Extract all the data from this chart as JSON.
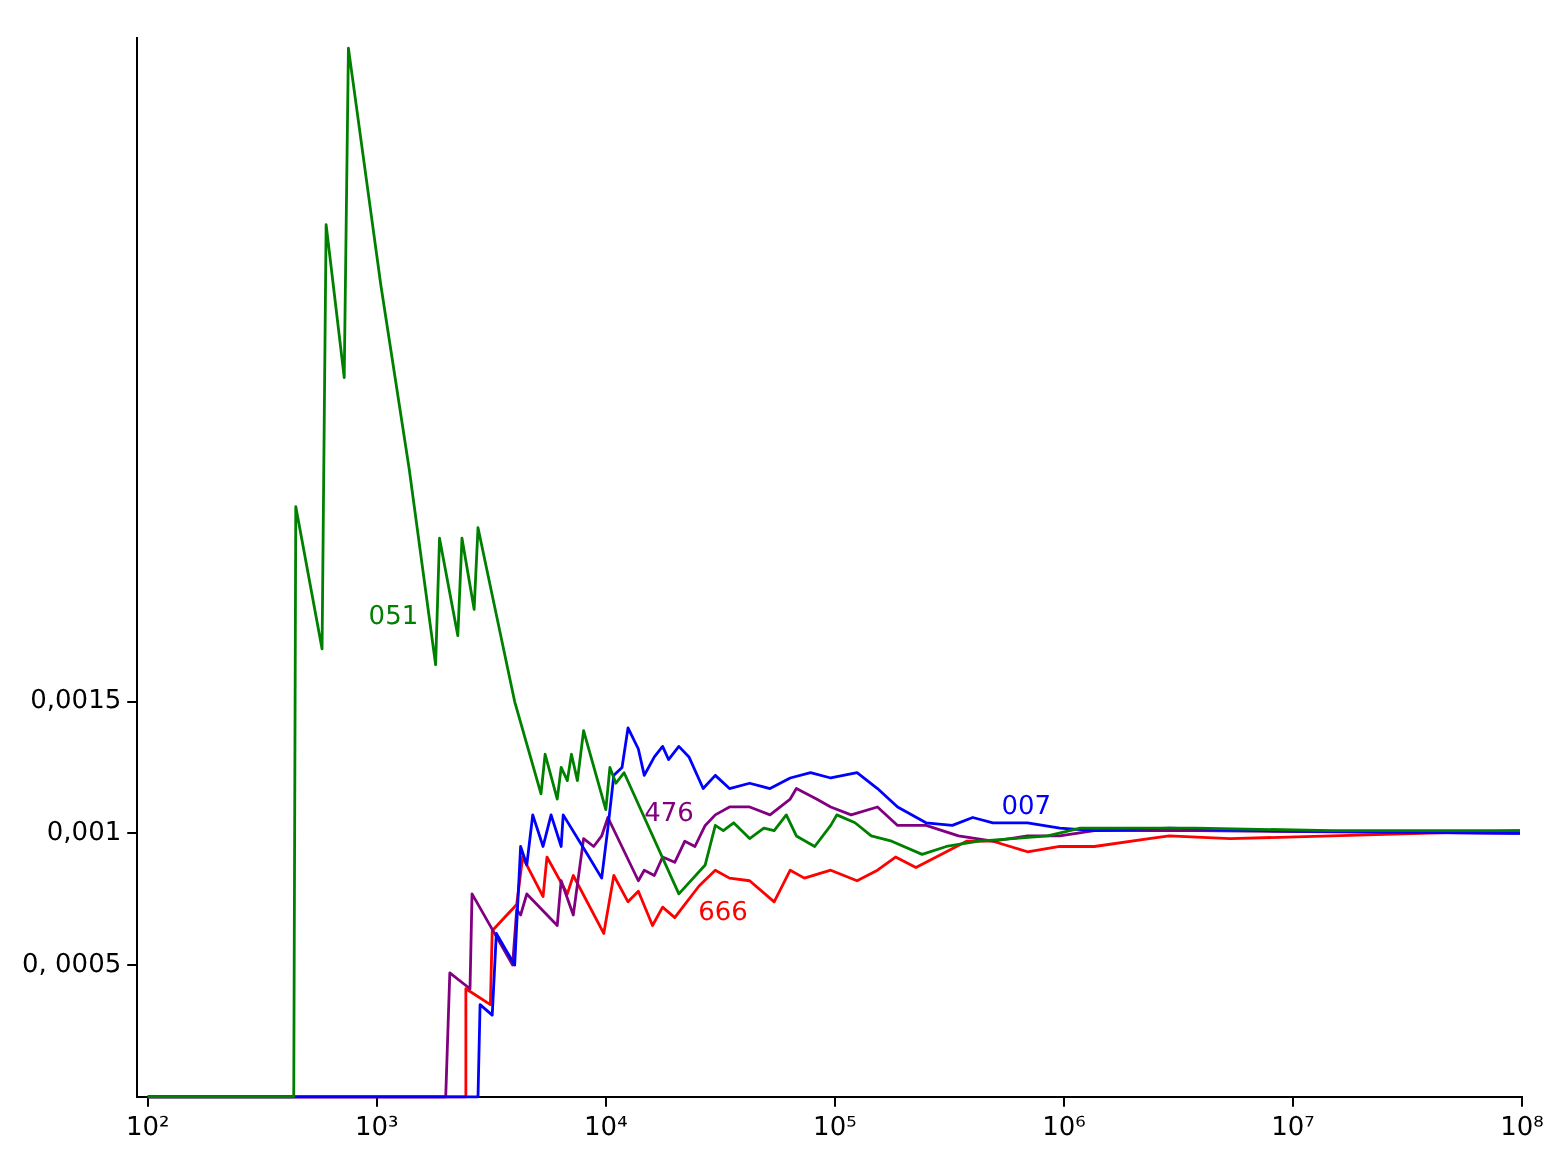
{
  "chart_data": {
    "type": "line",
    "log": "x",
    "grid": false,
    "legend": false,
    "marker": "none",
    "line_style": "solid",
    "xlim": [
      90,
      100000000
    ],
    "ylim": [
      0,
      0.00402
    ],
    "xticks": [
      {
        "value": 100,
        "label": "10²"
      },
      {
        "value": 1000,
        "label": "10³"
      },
      {
        "value": 10000,
        "label": "10⁴"
      },
      {
        "value": 100000,
        "label": "10⁵"
      },
      {
        "value": 1000000,
        "label": "10⁶"
      },
      {
        "value": 10000000,
        "label": "10⁷"
      },
      {
        "value": 100000000,
        "label": "10⁸"
      }
    ],
    "yticks": [
      {
        "value": 0.0005,
        "label": "0, 0005"
      },
      {
        "value": 0.001,
        "label": "0,001"
      },
      {
        "value": 0.0015,
        "label": "0,0015"
      }
    ],
    "series": [
      {
        "name": "051",
        "color": "#008000",
        "x": [
          100,
          434,
          443,
          577,
          601,
          721,
          752,
          1042,
          1387,
          1807,
          1879,
          2259,
          2355,
          2661,
          2767,
          4000,
          5212,
          5433,
          6137,
          6383,
          6792,
          7079,
          7516,
          7998,
          10000,
          10420,
          11070,
          12020,
          20840,
          27160,
          30060,
          32580,
          36140,
          42460,
          48980,
          54330,
          61380,
          67920,
          81660,
          95940,
          102000,
          122500,
          144200,
          177000,
          240400,
          306900,
          424800,
          601000,
          849300,
          1178000,
          1919000,
          3758000,
          14720000,
          97960000
        ],
        "values": [
          0,
          0,
          0.00224,
          0.0017,
          0.00331,
          0.00273,
          0.00398,
          0.00308,
          0.00238,
          0.00164,
          0.00212,
          0.00175,
          0.00212,
          0.00185,
          0.00216,
          0.0015,
          0.00115,
          0.0013,
          0.00113,
          0.00125,
          0.0012,
          0.0013,
          0.0012,
          0.00139,
          0.00109,
          0.00125,
          0.00119,
          0.00123,
          0.00077,
          0.00088,
          0.00103,
          0.00101,
          0.00104,
          0.00098,
          0.00102,
          0.00101,
          0.00107,
          0.00099,
          0.00095,
          0.00103,
          0.00107,
          0.00104,
          0.00099,
          0.00097,
          0.00092,
          0.00095,
          0.00097,
          0.00098,
          0.00099,
          0.00102,
          0.00102,
          0.00102,
          0.00101,
          0.00101
        ]
      },
      {
        "name": "007",
        "color": "#0000ff",
        "x": [
          100,
          2767,
          2825,
          3192,
          3327,
          4000,
          4246,
          4519,
          4797,
          5321,
          5768,
          6383,
          6516,
          8318,
          9594,
          10210,
          10840,
          11770,
          12500,
          13870,
          14720,
          16290,
          17700,
          18790,
          20840,
          23070,
          26610,
          30060,
          34670,
          42460,
          52120,
          63830,
          78340,
          95940,
          125000,
          153500,
          187900,
          250000,
          325800,
          399900,
          489800,
          693400,
          959400,
          1358000,
          2884000,
          7362000,
          97960000
        ],
        "values": [
          0,
          0,
          0.00035,
          0.00031,
          0.00062,
          0.0005,
          0.00095,
          0.00088,
          0.00107,
          0.00095,
          0.00107,
          0.00095,
          0.00107,
          0.00092,
          0.00083,
          0.00102,
          0.00122,
          0.00125,
          0.0014,
          0.00132,
          0.00122,
          0.00129,
          0.00133,
          0.00128,
          0.00133,
          0.00129,
          0.00117,
          0.00122,
          0.00117,
          0.00119,
          0.00117,
          0.00121,
          0.00123,
          0.00121,
          0.00123,
          0.00117,
          0.0011,
          0.00104,
          0.00103,
          0.00106,
          0.00104,
          0.00104,
          0.00102,
          0.00101,
          0.00102,
          0.00101,
          0.001
        ]
      },
      {
        "name": "476",
        "color": "#800080",
        "x": [
          100,
          2000,
          2084,
          2553,
          2606,
          3917,
          4083,
          4246,
          4519,
          6137,
          6383,
          7211,
          7998,
          8851,
          9594,
          10210,
          13870,
          14720,
          16290,
          17700,
          20000,
          22130,
          24490,
          27160,
          30060,
          34670,
          42460,
          52120,
          63830,
          67920,
          83180,
          95940,
          117800,
          153500,
          187900,
          250000,
          346700,
          489800,
          693400,
          959400,
          1358000,
          3758000,
          97960000
        ],
        "values": [
          0,
          0,
          0.00047,
          0.00041,
          0.00077,
          0.0005,
          0.00071,
          0.00069,
          0.00077,
          0.00065,
          0.00082,
          0.00069,
          0.00098,
          0.00095,
          0.00099,
          0.00106,
          0.00082,
          0.00086,
          0.00084,
          0.00091,
          0.00089,
          0.00097,
          0.00095,
          0.00103,
          0.00107,
          0.0011,
          0.0011,
          0.00107,
          0.00113,
          0.00117,
          0.00113,
          0.0011,
          0.00107,
          0.0011,
          0.00103,
          0.00103,
          0.00099,
          0.00097,
          0.00099,
          0.00099,
          0.00101,
          0.00101,
          0.001
        ]
      },
      {
        "name": "666",
        "color": "#ff0000",
        "x": [
          100,
          2404,
          2449,
          3133,
          3192,
          4083,
          4335,
          5321,
          5534,
          6792,
          7211,
          9795,
          10840,
          12500,
          13870,
          15990,
          17700,
          20000,
          21680,
          25530,
          30060,
          34670,
          42460,
          54330,
          63830,
          73620,
          95940,
          125000,
          153500,
          184100,
          225900,
          306900,
          375800,
          489800,
          693400,
          959400,
          1358000,
          2355000,
          2884000,
          5321000,
          14720000,
          97960000
        ],
        "values": [
          0,
          0,
          0.00041,
          0.00035,
          0.00063,
          0.00073,
          0.00091,
          0.00076,
          0.00091,
          0.00077,
          0.00084,
          0.00062,
          0.00084,
          0.00074,
          0.00078,
          0.00065,
          0.00072,
          0.00068,
          0.00072,
          0.0008,
          0.00086,
          0.00083,
          0.00082,
          0.00074,
          0.00086,
          0.00083,
          0.00086,
          0.00082,
          0.00086,
          0.00091,
          0.00087,
          0.00093,
          0.00097,
          0.00097,
          0.00093,
          0.00095,
          0.00095,
          0.00098,
          0.00099,
          0.00098,
          0.00099,
          0.00101
        ]
      }
    ]
  }
}
